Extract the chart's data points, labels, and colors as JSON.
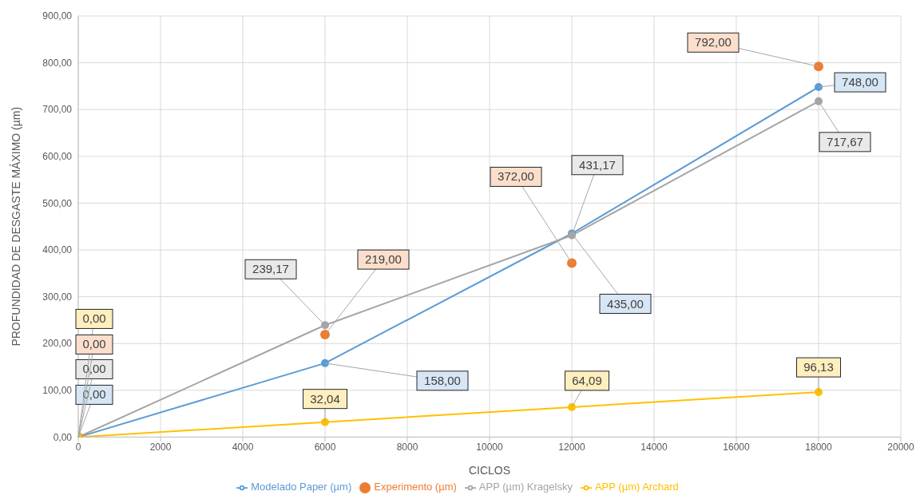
{
  "chart_data": {
    "type": "line",
    "xlabel": "CICLOS",
    "ylabel": "PROFUNDIDAD DE DESGASTE MÁXIMO (µm)",
    "x": [
      0,
      6000,
      12000,
      18000
    ],
    "series": [
      {
        "name": "Modelado Paper (µm)",
        "color": "#5b9bd5",
        "values": [
          0,
          158,
          435,
          748
        ],
        "value_labels": [
          "0,00",
          "158,00",
          "435,00",
          "748,00"
        ]
      },
      {
        "name": "Experimento (µm)",
        "type": "scatter",
        "color": "#ed7d31",
        "values": [
          0,
          219,
          372,
          792
        ],
        "value_labels": [
          "0,00",
          "219,00",
          "372,00",
          "792,00"
        ]
      },
      {
        "name": "APP (µm) Kragelsky",
        "color": "#a5a5a5",
        "values": [
          0,
          239.17,
          431.17,
          717.67
        ],
        "value_labels": [
          "0,00",
          "239,17",
          "431,17",
          "717,67"
        ]
      },
      {
        "name": "APP (µm) Archard",
        "color": "#ffc000",
        "values": [
          0,
          32.04,
          64.09,
          96.13
        ],
        "value_labels": [
          "0,00",
          "32,04",
          "64,09",
          "96,13"
        ]
      }
    ],
    "xlim": [
      0,
      20000
    ],
    "xticks": [
      0,
      2000,
      4000,
      6000,
      8000,
      10000,
      12000,
      14000,
      16000,
      18000,
      20000
    ],
    "ylim": [
      0,
      900
    ],
    "yticks": [
      {
        "value": 0,
        "label": "0,00"
      },
      {
        "value": 100,
        "label": "100,00"
      },
      {
        "value": 200,
        "label": "200,00"
      },
      {
        "value": 300,
        "label": "300,00"
      },
      {
        "value": 400,
        "label": "400,00"
      },
      {
        "value": 500,
        "label": "500,00"
      },
      {
        "value": 600,
        "label": "600,00"
      },
      {
        "value": 700,
        "label": "700,00"
      },
      {
        "value": 800,
        "label": "800,00"
      },
      {
        "value": 900,
        "label": "900,00"
      }
    ],
    "grid": true,
    "legend": "bottom",
    "marker": "circle",
    "line_style": "solid"
  }
}
